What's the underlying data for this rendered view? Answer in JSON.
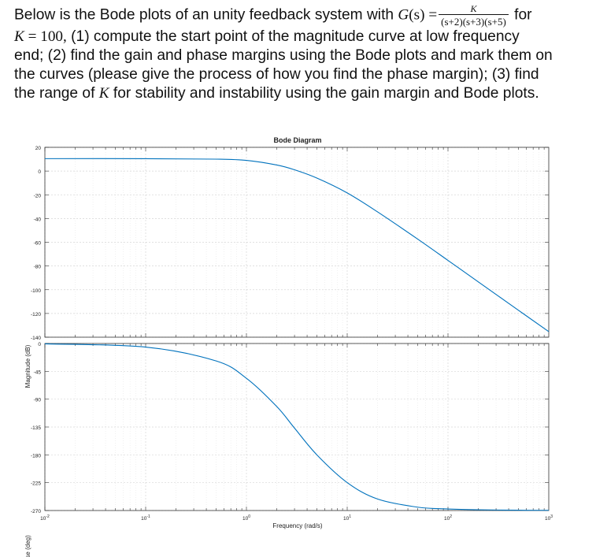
{
  "problem": {
    "line1_pre": "Below is the Bode plots of an unity feedback system with ",
    "G": "G",
    "paren_s": "(s) =",
    "frac_num": "K",
    "frac_den": "(s+2)(s+3)(s+5)",
    "line1_post": "for",
    "line2_K": "K",
    "line2_math": " = 100,",
    "line2_rest": " (1) compute the start point of the magnitude curve at low frequency",
    "line3": "end; (2) find the gain and phase margins using the Bode plots and mark them on",
    "line4": "the curves (please give the process of how you find the phase margin); (3) find",
    "line5_pre": "the range of ",
    "line5_K": "K",
    "line5_post": " for stability and instability using the gain margin and Bode plots."
  },
  "chart_data": {
    "type": "line",
    "title": "Bode Diagram",
    "xlabel": "Frequency (rad/s)",
    "x_scale": "log",
    "xlim": [
      0.01,
      1000
    ],
    "x_ticks": [
      {
        "base": "10",
        "exp": "-2"
      },
      {
        "base": "10",
        "exp": "-1"
      },
      {
        "base": "10",
        "exp": "0"
      },
      {
        "base": "10",
        "exp": "1"
      },
      {
        "base": "10",
        "exp": "2"
      },
      {
        "base": "10",
        "exp": "3"
      }
    ],
    "grid": true,
    "line_color": "#0072bd",
    "system": {
      "K": 100,
      "poles": [
        2,
        3,
        5
      ]
    },
    "panels": [
      {
        "name": "magnitude",
        "ylabel": "Magnitude (dB)",
        "ylim": [
          -140,
          20
        ],
        "y_ticks": [
          20,
          0,
          -20,
          -40,
          -60,
          -80,
          -100,
          -120,
          -140
        ],
        "series": [
          {
            "x": [
              0.01,
              0.1,
              0.5,
              1,
              2,
              3,
              5,
              10,
              20,
              50,
              100,
              200,
              500,
              1000
            ],
            "values": [
              10.46,
              10.44,
              10.04,
              8.98,
              5.08,
              1.07,
              -5.9,
              -18.4,
              -34.4,
              -57.3,
              -75.3,
              -93.4,
              -117.3,
              -135.3
            ]
          }
        ]
      },
      {
        "name": "phase",
        "ylabel": "Phase (deg)",
        "ylim": [
          -270,
          0
        ],
        "y_ticks": [
          0,
          -45,
          -90,
          -135,
          -180,
          -225,
          -270
        ],
        "series": [
          {
            "x": [
              0.01,
              0.1,
              0.5,
              1,
              2,
              3,
              5,
              10,
              20,
              50,
              100,
              200,
              500,
              1000
            ],
            "values": [
              -0.58,
              -5.8,
              -28.2,
              -56.3,
              -101.9,
              -136.8,
              -180.0,
              -224.8,
              -251.4,
              -264.6,
              -267.5,
              -268.8,
              -269.5,
              -269.7
            ]
          }
        ]
      }
    ]
  }
}
